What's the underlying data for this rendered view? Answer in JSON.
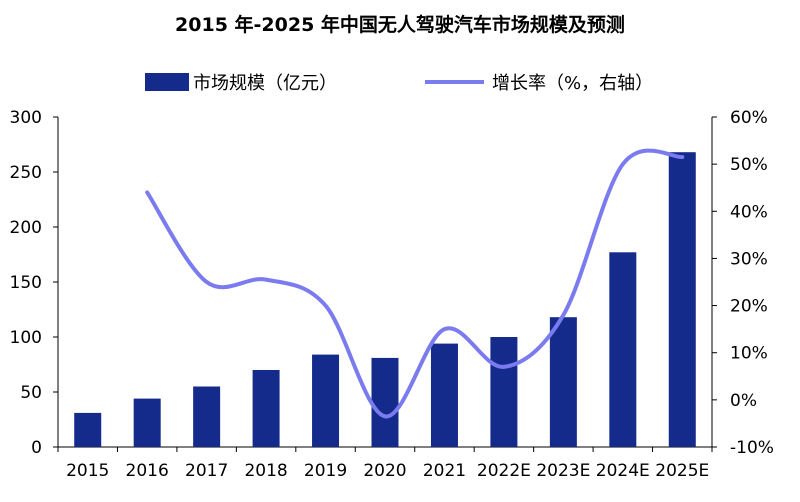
{
  "chart_data": {
    "title": "2015 年-2025 年中国无人驾驶汽车市场规模及预测",
    "type": "bar+line",
    "categories": [
      "2015",
      "2016",
      "2017",
      "2018",
      "2019",
      "2020",
      "2021",
      "2022E",
      "2023E",
      "2024E",
      "2025E"
    ],
    "series": [
      {
        "name": "市场规模（亿元）",
        "type": "bar",
        "axis": "left",
        "color": "#152B8C",
        "values": [
          31,
          44,
          55,
          70,
          84,
          81,
          94,
          100,
          118,
          177,
          268
        ]
      },
      {
        "name": "增长率（%，右轴）",
        "type": "line",
        "axis": "right",
        "color": "#7B7BF0",
        "values": [
          null,
          44,
          25,
          25.5,
          20,
          -3.5,
          15,
          7,
          18,
          50,
          51.5
        ]
      }
    ],
    "yLeft": {
      "min": 0,
      "max": 300,
      "ticks": [
        "0",
        "50",
        "100",
        "150",
        "200",
        "250",
        "300"
      ]
    },
    "yRight": {
      "min": -10,
      "max": 60,
      "ticks": [
        "-10%",
        "0%",
        "10%",
        "20%",
        "30%",
        "40%",
        "50%",
        "60%"
      ]
    },
    "legend": "top-center"
  }
}
